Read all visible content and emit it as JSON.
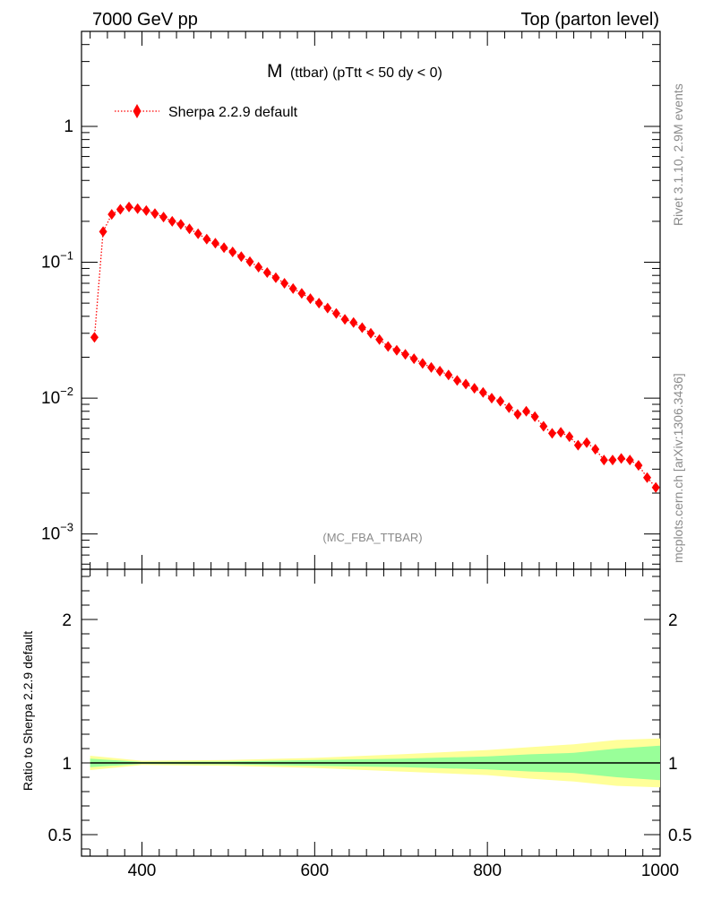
{
  "header": {
    "left": "7000 GeV pp",
    "right": "Top (parton level)"
  },
  "plot_title": {
    "main": "M",
    "sub": "(ttbar) (pTtt < 50 dy < 0)"
  },
  "side_labels": {
    "rivet": "Rivet 3.1.10,  2.9M events",
    "mcplots": "mcplots.cern.ch [arXiv:1306.3436]"
  },
  "analysis_tag": "(MC_FBA_TTBAR)",
  "ratio_ylabel": "Ratio to Sherpa 2.2.9 default",
  "colors": {
    "series": "#ff0000",
    "band_inner": "#99ff99",
    "band_outer": "#ffff99",
    "tag": "#8a8a8a"
  },
  "chart_data": [
    {
      "type": "scatter",
      "yscale": "log",
      "xlim": [
        330,
        1000
      ],
      "ylim": [
        0.00055,
        5
      ],
      "yticks": [
        0.001,
        0.01,
        0.1,
        1
      ],
      "ytick_labels": [
        {
          "base": "10",
          "exp": "−3"
        },
        {
          "base": "10",
          "exp": "−2"
        },
        {
          "base": "10",
          "exp": "−1"
        },
        {
          "base": "1",
          "exp": ""
        }
      ],
      "legend": "top-left",
      "series": [
        {
          "name": "Sherpa 2.2.9 default",
          "style": "dotted line with diamond markers",
          "x": [
            345,
            355,
            365,
            375,
            385,
            395,
            405,
            415,
            425,
            435,
            445,
            455,
            465,
            475,
            485,
            495,
            505,
            515,
            525,
            535,
            545,
            555,
            565,
            575,
            585,
            595,
            605,
            615,
            625,
            635,
            645,
            655,
            665,
            675,
            685,
            695,
            705,
            715,
            725,
            735,
            745,
            755,
            765,
            775,
            785,
            795,
            805,
            815,
            825,
            835,
            845,
            855,
            865,
            875,
            885,
            895,
            905,
            915,
            925,
            935,
            945,
            955,
            965,
            975,
            985,
            995
          ],
          "y": [
            0.028,
            0.168,
            0.225,
            0.245,
            0.255,
            0.248,
            0.24,
            0.228,
            0.215,
            0.2,
            0.19,
            0.176,
            0.162,
            0.148,
            0.138,
            0.128,
            0.119,
            0.11,
            0.101,
            0.092,
            0.084,
            0.077,
            0.07,
            0.064,
            0.059,
            0.054,
            0.05,
            0.046,
            0.042,
            0.038,
            0.036,
            0.033,
            0.03,
            0.027,
            0.024,
            0.0225,
            0.021,
            0.0195,
            0.018,
            0.0168,
            0.0158,
            0.0148,
            0.0135,
            0.0127,
            0.0118,
            0.011,
            0.01,
            0.0095,
            0.0085,
            0.0076,
            0.008,
            0.0073,
            0.0062,
            0.0055,
            0.0056,
            0.0052,
            0.0045,
            0.0047,
            0.0042,
            0.0035,
            0.0035,
            0.0036,
            0.0035,
            0.0032,
            0.0026,
            0.0022
          ]
        }
      ]
    },
    {
      "type": "area",
      "ylabel": "Ratio to Sherpa 2.2.9 default",
      "xlim": [
        330,
        1000
      ],
      "ylim": [
        0.35,
        2.35
      ],
      "yticks": [
        0.5,
        1,
        2
      ],
      "ytick_labels": [
        "0.5",
        "1",
        "2"
      ],
      "xticks": [
        400,
        600,
        800,
        1000
      ],
      "xtick_labels": [
        "400",
        "600",
        "800",
        "1000"
      ],
      "reference": 1,
      "bands": [
        {
          "name": "stat+syst",
          "x": [
            340,
            400,
            500,
            600,
            700,
            800,
            850,
            900,
            950,
            1000
          ],
          "lower": [
            0.95,
            0.985,
            0.98,
            0.965,
            0.94,
            0.915,
            0.89,
            0.87,
            0.84,
            0.83
          ],
          "upper": [
            1.05,
            1.015,
            1.02,
            1.035,
            1.06,
            1.09,
            1.11,
            1.13,
            1.16,
            1.17
          ]
        },
        {
          "name": "stat",
          "x": [
            340,
            400,
            500,
            600,
            700,
            800,
            850,
            900,
            950,
            1000
          ],
          "lower": [
            0.97,
            0.993,
            0.99,
            0.98,
            0.97,
            0.955,
            0.94,
            0.93,
            0.9,
            0.88
          ],
          "upper": [
            1.03,
            1.007,
            1.01,
            1.02,
            1.03,
            1.045,
            1.06,
            1.07,
            1.1,
            1.12
          ]
        }
      ]
    }
  ]
}
